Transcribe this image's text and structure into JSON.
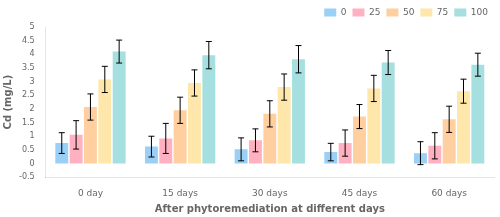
{
  "chart_data": {
    "type": "bar",
    "categories": [
      "0 day",
      "15 days",
      "30 days",
      "45 days",
      "60 days"
    ],
    "series": [
      {
        "name": "0",
        "values": [
          0.75,
          0.62,
          0.52,
          0.42,
          0.38
        ],
        "errors": [
          0.38,
          0.38,
          0.42,
          0.32,
          0.42
        ]
      },
      {
        "name": "25",
        "values": [
          1.05,
          0.92,
          0.85,
          0.75,
          0.65
        ],
        "errors": [
          0.52,
          0.55,
          0.42,
          0.48,
          0.48
        ]
      },
      {
        "name": "50",
        "values": [
          2.07,
          1.95,
          1.82,
          1.72,
          1.62
        ],
        "errors": [
          0.48,
          0.48,
          0.48,
          0.44,
          0.48
        ]
      },
      {
        "name": "75",
        "values": [
          3.08,
          2.95,
          2.8,
          2.75,
          2.65
        ],
        "errors": [
          0.48,
          0.48,
          0.48,
          0.48,
          0.44
        ]
      },
      {
        "name": "100",
        "values": [
          4.1,
          3.97,
          3.82,
          3.7,
          3.62
        ],
        "errors": [
          0.42,
          0.5,
          0.5,
          0.44,
          0.42
        ]
      }
    ],
    "ylabel": "Cd (mg/L)",
    "xlabel": "After phytoremediation at different days",
    "ylim": [
      -0.5,
      5
    ],
    "yticks": [
      -0.5,
      0,
      0.5,
      1,
      1.5,
      2,
      2.5,
      3,
      3.5,
      4,
      4.5,
      5
    ],
    "grid": false,
    "legend": "upper right"
  }
}
